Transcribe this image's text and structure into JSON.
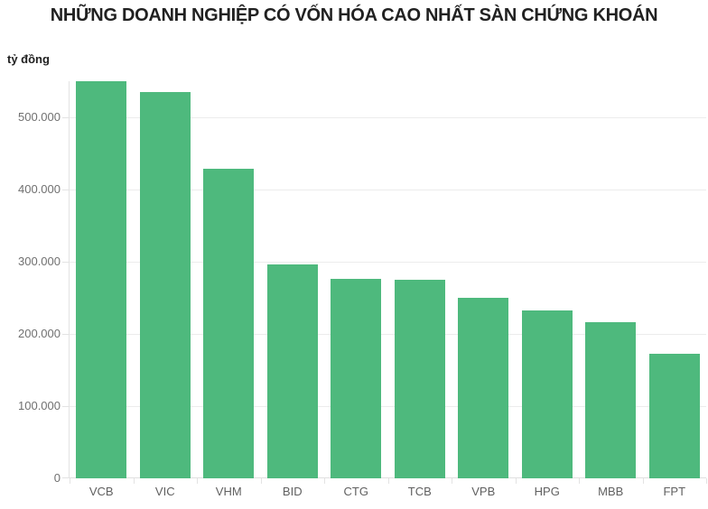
{
  "title": "NHỮNG DOANH NGHIỆP CÓ VỐN HÓA CAO NHẤT SÀN CHỨNG KHOÁN",
  "unit_label": "tỷ đồng",
  "colors": {
    "bar": "#4eb97d",
    "grid": "#ececec",
    "axis": "#e3e3e3",
    "y_tick_label": "#707070",
    "x_tick_label": "#606060",
    "title": "#212121"
  },
  "chart_data": {
    "type": "bar",
    "title": "NHỮNG DOANH NGHIỆP CÓ VỐN HÓA CAO NHẤT SÀN CHỨNG KHOÁN",
    "xlabel": "",
    "ylabel": "tỷ đồng",
    "categories": [
      "VCB",
      "VIC",
      "VHM",
      "BID",
      "CTG",
      "TCB",
      "VPB",
      "HPG",
      "MBB",
      "FPT"
    ],
    "values": [
      550000,
      535000,
      429000,
      296000,
      276000,
      275000,
      250000,
      232000,
      216000,
      173000
    ],
    "ylim": [
      0,
      550000
    ],
    "y_ticks": [
      {
        "value": 0,
        "label": "0"
      },
      {
        "value": 100000,
        "label": "100.000"
      },
      {
        "value": 200000,
        "label": "200.000"
      },
      {
        "value": 300000,
        "label": "300.000"
      },
      {
        "value": 400000,
        "label": "400.000"
      },
      {
        "value": 500000,
        "label": "500.000"
      }
    ],
    "grid": true,
    "legend": false
  }
}
